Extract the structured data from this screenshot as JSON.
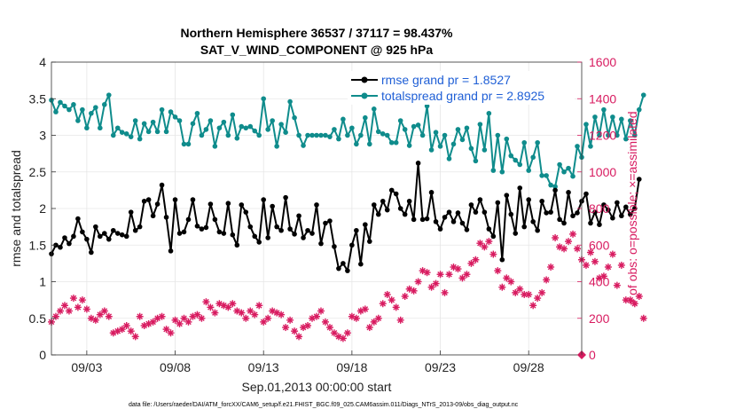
{
  "chart_data": {
    "type": "line",
    "title": "Northern Hemisphere 36537 / 37117 = 98.437%",
    "subtitle": "SAT_V_WIND_COMPONENT @ 925 hPa",
    "xlabel": "Sep.01,2013 00:00:00 start",
    "ylabel": "rmse and totalspread",
    "ylabel_right": "# of obs: o=possible; ×=assimilated",
    "xlim": [
      1.0,
      31.0
    ],
    "ylim": [
      0,
      4
    ],
    "ylim_right": [
      0,
      1600
    ],
    "x_ticks": [
      3,
      8,
      13,
      18,
      23,
      28
    ],
    "x_tick_labels": [
      "09/03",
      "09/08",
      "09/13",
      "09/18",
      "09/23",
      "09/28"
    ],
    "y_ticks": [
      0,
      0.5,
      1,
      1.5,
      2,
      2.5,
      3,
      3.5,
      4
    ],
    "y_tick_labels": [
      "0",
      "0.5",
      "1",
      "1.5",
      "2",
      "2.5",
      "3",
      "3.5",
      "4"
    ],
    "y_right_ticks": [
      0,
      200,
      400,
      600,
      800,
      1000,
      1200,
      1400,
      1600
    ],
    "y_right_tick_labels": [
      "0",
      "200",
      "400",
      "600",
      "800",
      "1000",
      "1200",
      "1400",
      "1600"
    ],
    "grid": true,
    "legend_position": "top-right",
    "series": [
      {
        "name": "rmse grand pr = 1.8527",
        "color": "#000000",
        "x_start": 1.0,
        "x_step": 0.25,
        "values": [
          1.38,
          1.5,
          1.47,
          1.6,
          1.52,
          1.62,
          1.86,
          1.68,
          1.58,
          1.4,
          1.75,
          1.62,
          1.66,
          1.58,
          1.7,
          1.66,
          1.64,
          1.62,
          1.95,
          1.7,
          1.75,
          2.1,
          2.12,
          1.9,
          2.06,
          2.32,
          1.88,
          1.42,
          2.12,
          1.66,
          1.68,
          1.85,
          2.12,
          1.76,
          1.72,
          1.74,
          2.06,
          1.85,
          1.68,
          1.66,
          2.07,
          1.64,
          1.5,
          2.05,
          1.95,
          1.75,
          1.62,
          1.54,
          2.12,
          1.6,
          2.03,
          1.75,
          1.7,
          2.15,
          1.72,
          1.65,
          1.9,
          1.6,
          1.7,
          1.66,
          2.05,
          1.52,
          1.8,
          1.83,
          1.48,
          1.18,
          1.25,
          1.15,
          1.5,
          1.7,
          1.24,
          1.78,
          1.55,
          2.05,
          1.92,
          2.1,
          1.98,
          2.25,
          2.2,
          2.0,
          1.92,
          2.1,
          1.85,
          2.62,
          1.85,
          1.86,
          2.22,
          1.82,
          1.72,
          1.88,
          1.95,
          1.82,
          1.94,
          1.8,
          1.71,
          2.05,
          1.95,
          2.12,
          1.95,
          1.72,
          1.62,
          2.08,
          1.3,
          2.18,
          1.92,
          1.66,
          2.28,
          1.75,
          2.12,
          1.82,
          1.7,
          2.1,
          1.94,
          1.95,
          2.25,
          1.85,
          1.8,
          2.22,
          1.9,
          1.94,
          2.1,
          2.2,
          1.8,
          1.95,
          1.78,
          2.05,
          1.98,
          1.87,
          2.08,
          1.9,
          2.02,
          1.92,
          2.0,
          2.4
        ]
      },
      {
        "name": "totalspread grand pr = 2.8925",
        "color": "#0f8c8c",
        "x_start": 1.0,
        "x_step": 0.25,
        "values": [
          3.48,
          3.32,
          3.45,
          3.4,
          3.35,
          3.42,
          3.2,
          3.35,
          3.1,
          3.3,
          3.38,
          3.1,
          3.42,
          3.55,
          3.0,
          3.1,
          3.04,
          3.02,
          2.98,
          3.2,
          2.95,
          3.16,
          3.05,
          3.18,
          3.05,
          3.35,
          3.05,
          3.32,
          3.25,
          3.2,
          2.88,
          2.88,
          3.16,
          3.3,
          3.0,
          3.08,
          3.2,
          2.85,
          3.1,
          3.18,
          3.0,
          3.28,
          2.96,
          3.12,
          3.1,
          3.12,
          3.06,
          3.0,
          3.5,
          3.08,
          3.2,
          2.85,
          3.15,
          3.04,
          3.46,
          3.24,
          3.0,
          2.86,
          3.0,
          3.0,
          3.0,
          3.0,
          3.0,
          2.98,
          3.08,
          2.95,
          3.22,
          3.0,
          3.1,
          2.88,
          3.0,
          3.24,
          2.88,
          3.36,
          3.05,
          3.02,
          3.0,
          2.9,
          2.9,
          3.2,
          3.08,
          2.86,
          3.12,
          3.14,
          3.0,
          3.4,
          2.8,
          3.04,
          2.85,
          3.0,
          2.68,
          2.88,
          3.08,
          2.94,
          3.1,
          2.82,
          2.65,
          3.15,
          2.8,
          3.3,
          2.52,
          3.0,
          2.5,
          2.95,
          2.72,
          2.66,
          2.6,
          2.9,
          2.52,
          2.7,
          2.9,
          2.45,
          2.45,
          2.32,
          2.3,
          2.6,
          2.5,
          2.55,
          2.44,
          2.85,
          2.7,
          3.15,
          2.85,
          3.25,
          3.0,
          3.35,
          3.0,
          3.25,
          3.0,
          3.22,
          2.95,
          3.2,
          3.0,
          3.35,
          3.55
        ]
      }
    ],
    "obs_series": {
      "name": "# of obs assimilated",
      "color": "#d81b60",
      "marker": "asterisk",
      "x_start": 1.0,
      "x_step": 0.25,
      "values": [
        180,
        210,
        240,
        270,
        240,
        310,
        260,
        300,
        250,
        200,
        190,
        220,
        240,
        210,
        120,
        130,
        140,
        160,
        130,
        100,
        210,
        160,
        170,
        180,
        200,
        210,
        140,
        120,
        190,
        170,
        200,
        180,
        210,
        220,
        200,
        290,
        260,
        230,
        280,
        270,
        260,
        280,
        240,
        230,
        200,
        240,
        220,
        270,
        180,
        200,
        240,
        230,
        220,
        150,
        190,
        130,
        100,
        150,
        160,
        200,
        210,
        240,
        180,
        150,
        120,
        100,
        90,
        120,
        210,
        200,
        240,
        250,
        150,
        180,
        200,
        280,
        330,
        300,
        260,
        190,
        320,
        360,
        350,
        400,
        460,
        450,
        370,
        390,
        440,
        340,
        440,
        480,
        470,
        420,
        440,
        500,
        520,
        610,
        590,
        620,
        550,
        460,
        370,
        420,
        400,
        340,
        360,
        330,
        330,
        270,
        310,
        340,
        410,
        480,
        640,
        590,
        580,
        620,
        660,
        580,
        520,
        490,
        560,
        510,
        420,
        430,
        480,
        550,
        380,
        490,
        300,
        300,
        280,
        320,
        200
      ]
    },
    "possible_marker": {
      "x": 31.0,
      "value": 0
    }
  },
  "footnote": "data file: /Users/raeder/DAI/ATM_forcXX/CAM6_setup/f.e21.FHIST_BGC.f09_025.CAM6assim.011/Diags_NTrS_2013-09/obs_diag_output.nc"
}
